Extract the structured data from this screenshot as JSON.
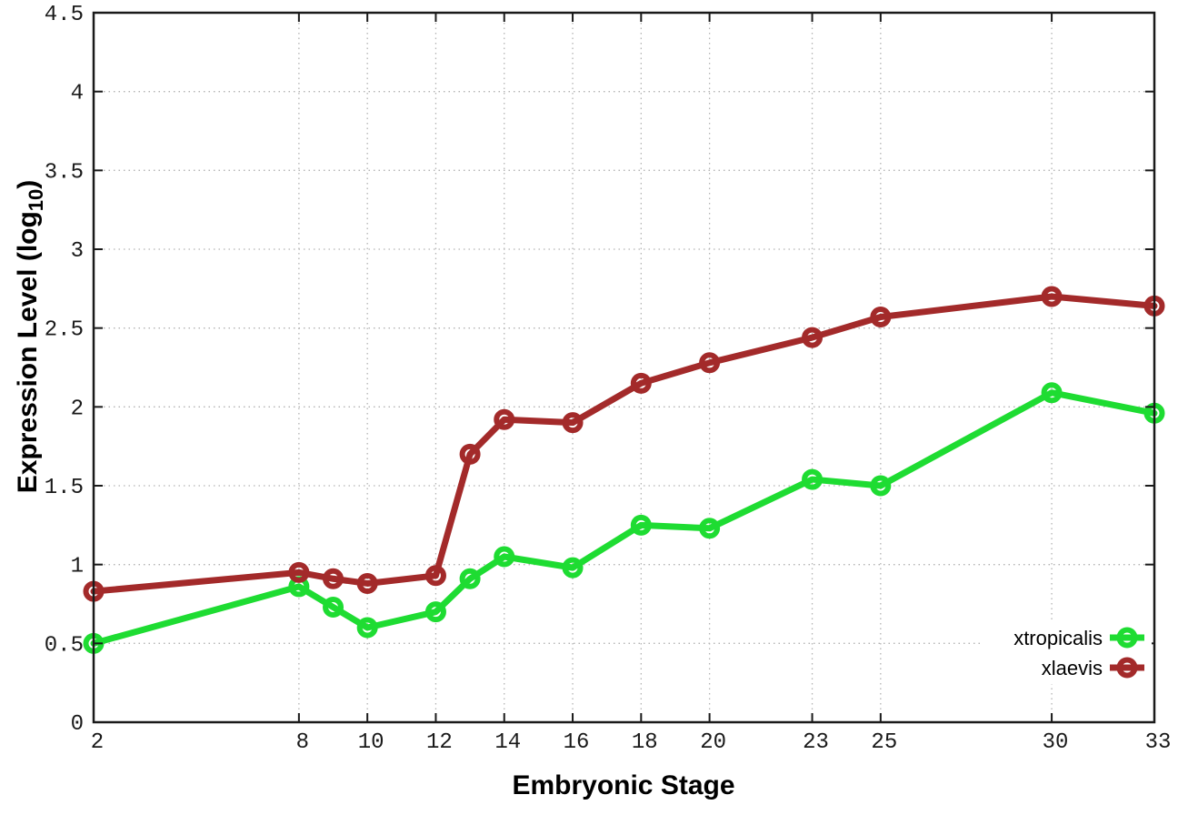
{
  "chart_data": {
    "type": "line",
    "title": "",
    "xlabel": "Embryonic Stage",
    "ylabel": "Expression Level (log10)",
    "ylabel_parts": {
      "main": "Expression Level (log",
      "sub": "10",
      "close": ")"
    },
    "xlim": [
      2,
      33
    ],
    "ylim": [
      0,
      4.5
    ],
    "grid": true,
    "legend_position": "inside-bottom-right",
    "x": [
      2,
      8,
      9,
      10,
      12,
      13,
      14,
      16,
      18,
      20,
      23,
      25,
      30,
      33
    ],
    "xticks": [
      {
        "value": 2,
        "label": "2"
      },
      {
        "value": 8,
        "label": "8"
      },
      {
        "value": 10,
        "label": "10"
      },
      {
        "value": 12,
        "label": "12"
      },
      {
        "value": 14,
        "label": "14"
      },
      {
        "value": 16,
        "label": "16"
      },
      {
        "value": 18,
        "label": "18"
      },
      {
        "value": 20,
        "label": "20"
      },
      {
        "value": 23,
        "label": "23"
      },
      {
        "value": 25,
        "label": "25"
      },
      {
        "value": 30,
        "label": "30"
      },
      {
        "value": 33,
        "label": "33"
      }
    ],
    "yticks": [
      {
        "value": 0,
        "label": "0"
      },
      {
        "value": 0.5,
        "label": "0.5"
      },
      {
        "value": 1,
        "label": "1"
      },
      {
        "value": 1.5,
        "label": "1.5"
      },
      {
        "value": 2,
        "label": "2"
      },
      {
        "value": 2.5,
        "label": "2.5"
      },
      {
        "value": 3,
        "label": "3"
      },
      {
        "value": 3.5,
        "label": "3.5"
      },
      {
        "value": 4,
        "label": "4"
      },
      {
        "value": 4.5,
        "label": "4.5"
      }
    ],
    "series": [
      {
        "name": "xtropicalis",
        "color": "#1edc32",
        "values": [
          0.5,
          0.86,
          0.73,
          0.6,
          0.7,
          0.91,
          1.05,
          0.98,
          1.25,
          1.23,
          1.54,
          1.5,
          2.09,
          1.96
        ]
      },
      {
        "name": "xlaevis",
        "color": "#a32a2a",
        "values": [
          0.83,
          0.95,
          0.91,
          0.88,
          0.93,
          1.7,
          1.92,
          1.9,
          2.15,
          2.28,
          2.44,
          2.57,
          2.7,
          2.64
        ]
      }
    ],
    "colors": {
      "border": "#1a1a1a",
      "grid": "#b3b3b3",
      "background": "#ffffff"
    }
  }
}
